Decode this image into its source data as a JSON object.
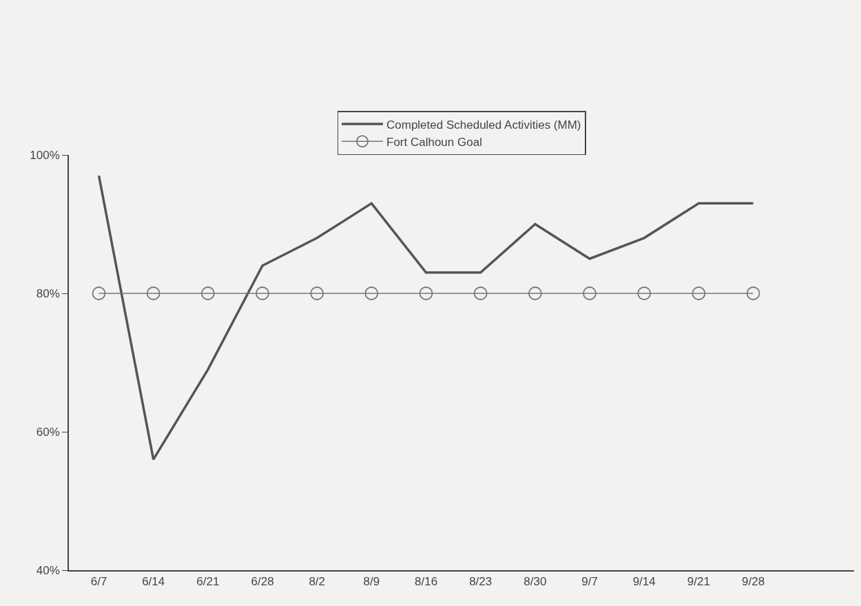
{
  "chart_data": {
    "type": "line",
    "categories": [
      "6/7",
      "6/14",
      "6/21",
      "6/28",
      "8/2",
      "8/9",
      "8/16",
      "8/23",
      "8/30",
      "9/7",
      "9/14",
      "9/21",
      "9/28"
    ],
    "series": [
      {
        "name": "Completed Scheduled Activities (MM)",
        "color": "#555555",
        "marker": "none",
        "values": [
          97,
          56,
          69,
          84,
          88,
          93,
          83,
          83,
          90,
          85,
          88,
          93,
          93
        ]
      },
      {
        "name": "Fort Calhoun Goal",
        "color": "#777777",
        "marker": "circle",
        "values": [
          80,
          80,
          80,
          80,
          80,
          80,
          80,
          80,
          80,
          80,
          80,
          80,
          80
        ]
      }
    ],
    "ylim": [
      40,
      100
    ],
    "yticks": [
      {
        "value": 40,
        "label": "40%"
      },
      {
        "value": 60,
        "label": "60%"
      },
      {
        "value": 80,
        "label": "80%"
      },
      {
        "value": 100,
        "label": "100%"
      }
    ],
    "grid": false,
    "legend": "top",
    "line_style": "solid"
  }
}
